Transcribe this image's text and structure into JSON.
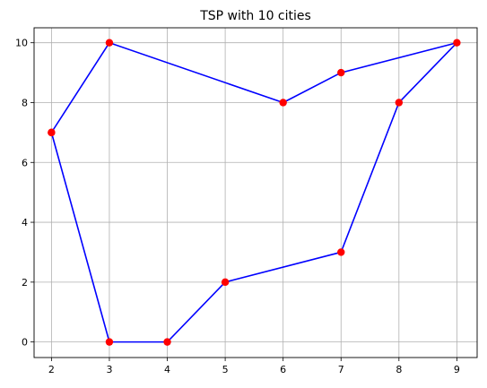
{
  "chart_data": {
    "type": "line",
    "title": "TSP with 10 cities",
    "xlabel": "",
    "ylabel": "",
    "xlim": [
      1.7,
      9.35
    ],
    "ylim": [
      -0.52,
      10.5
    ],
    "xticks": [
      2,
      3,
      4,
      5,
      6,
      7,
      8,
      9
    ],
    "yticks": [
      0,
      2,
      4,
      6,
      8,
      10
    ],
    "grid": true,
    "series": [
      {
        "line_color": "#0000ff",
        "marker_color": "#ff0000",
        "marker": "circle",
        "points": [
          [
            2,
            7
          ],
          [
            3,
            10
          ],
          [
            6,
            8
          ],
          [
            7,
            9
          ],
          [
            9,
            10
          ],
          [
            8,
            8
          ],
          [
            7,
            3
          ],
          [
            5,
            2
          ],
          [
            4,
            0
          ],
          [
            3,
            0
          ],
          [
            2,
            7
          ]
        ]
      }
    ]
  }
}
